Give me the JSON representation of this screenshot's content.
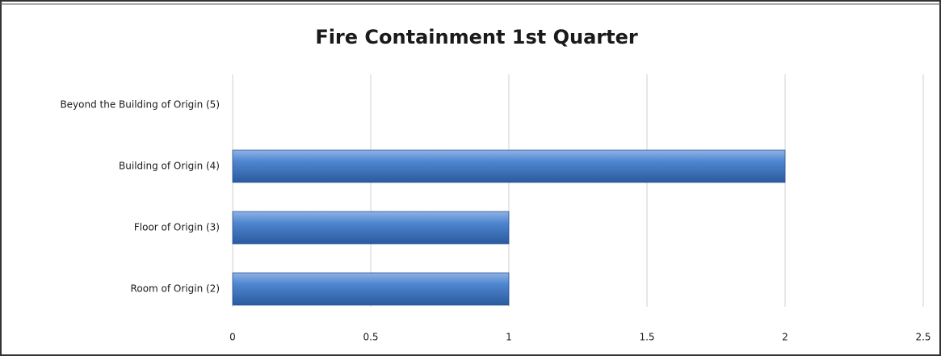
{
  "chart_data": {
    "type": "hbar",
    "title": "Fire Containment 1st Quarter",
    "categories": [
      "Beyond the Building of Origin (5)",
      "Building of Origin (4)",
      "Floor of Origin (3)",
      "Room of Origin (2)"
    ],
    "values": [
      0,
      2,
      1,
      1
    ],
    "color": "#3f74c0",
    "xlim": [
      0,
      2.5
    ],
    "xticks": [
      0,
      0.5,
      1,
      1.5,
      2,
      2.5
    ],
    "grid": true
  }
}
